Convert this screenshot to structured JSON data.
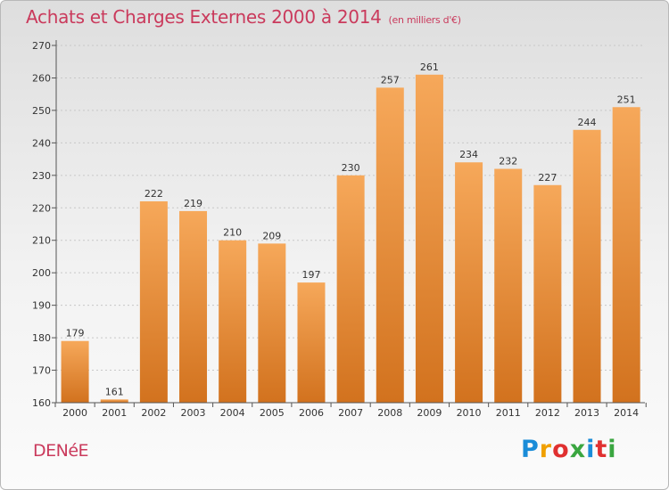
{
  "page": {
    "title": "Achats et Charges Externes 2000 à 2014",
    "subtitle": "(en milliers d'€)",
    "commune": "DENéE",
    "logo": {
      "text": "Proxiti",
      "letters": [
        "P",
        "r",
        "o",
        "x",
        "i",
        "t",
        "i"
      ],
      "colors": [
        "#1a8cd8",
        "#f0a000",
        "#e03030",
        "#3aa640",
        "#1a8cd8",
        "#e03030",
        "#3aa640"
      ]
    }
  },
  "chart_data": {
    "type": "bar",
    "title": "Achats et Charges Externes 2000 à 2014",
    "subtitle": "(en milliers d'€)",
    "xlabel": "",
    "ylabel": "",
    "categories": [
      "2000",
      "2001",
      "2002",
      "2003",
      "2004",
      "2005",
      "2006",
      "2007",
      "2008",
      "2009",
      "2010",
      "2011",
      "2012",
      "2013",
      "2014"
    ],
    "values": [
      179,
      161,
      222,
      219,
      210,
      209,
      197,
      230,
      257,
      261,
      234,
      232,
      227,
      244,
      251
    ],
    "data_labels": [
      "179",
      "161",
      "222",
      "219",
      "210",
      "209",
      "197",
      "230",
      "257",
      "261",
      "234",
      "232",
      "227",
      "244",
      "251"
    ],
    "ylim": [
      160,
      270
    ],
    "yticks": [
      160,
      170,
      180,
      190,
      200,
      210,
      220,
      230,
      240,
      250,
      260,
      270
    ],
    "ytick_labels": [
      "160",
      "170",
      "180",
      "190",
      "200",
      "210",
      "220",
      "230",
      "240",
      "250",
      "260",
      "270"
    ],
    "grid": true,
    "legend": "none",
    "colors": {
      "bar_light": "#f6a85a",
      "bar_dark": "#d2721e",
      "axis": "#555555",
      "grid": "#c8c8c8"
    }
  }
}
